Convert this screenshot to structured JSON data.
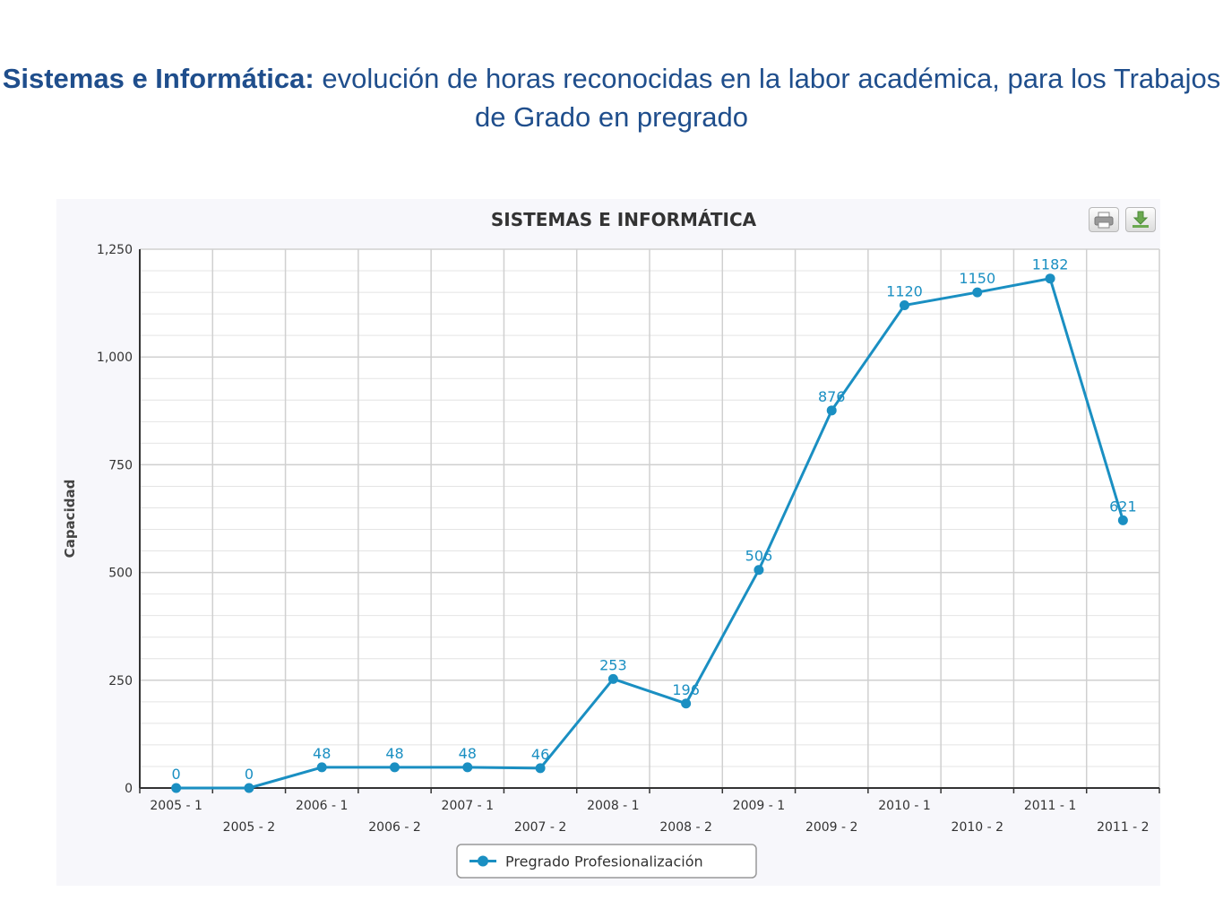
{
  "slide": {
    "title_lead": "Sistemas e Informática:",
    "title_rest": " evolución de horas reconocidas en la labor académica, para los Trabajos de Grado en pregrado"
  },
  "toolbar": {
    "print_icon": "print-icon",
    "download_icon": "download-icon"
  },
  "colors": {
    "series": "#1a8fc2",
    "title": "#1f4e8c",
    "grid": "#d0d0d0"
  },
  "chart_data": {
    "type": "line",
    "title": "SISTEMAS E INFORMÁTICA",
    "ylabel": "Capacidad",
    "xlabel": "",
    "ylim": [
      0,
      1250
    ],
    "yticks": [
      0,
      250,
      500,
      750,
      1000,
      1250
    ],
    "ytick_labels": [
      "0",
      "250",
      "500",
      "750",
      "1,000",
      "1,250"
    ],
    "categories": [
      "2005 - 1",
      "2005 - 2",
      "2006 - 1",
      "2006 - 2",
      "2007 - 1",
      "2007 - 2",
      "2008 - 1",
      "2008 - 2",
      "2009 - 1",
      "2009 - 2",
      "2010 - 1",
      "2010 - 2",
      "2011 - 1",
      "2011 - 2"
    ],
    "series": [
      {
        "name": "Pregrado Profesionalización",
        "values": [
          0,
          0,
          48,
          48,
          48,
          46,
          253,
          196,
          506,
          876,
          1120,
          1150,
          1182,
          621
        ],
        "data_labels": [
          "0",
          "0",
          "48",
          "48",
          "48",
          "46",
          "253",
          "196",
          "506",
          "876",
          "1120",
          "1150",
          "1182",
          "621"
        ]
      }
    ],
    "grid": true,
    "legend": "bottom-center"
  }
}
